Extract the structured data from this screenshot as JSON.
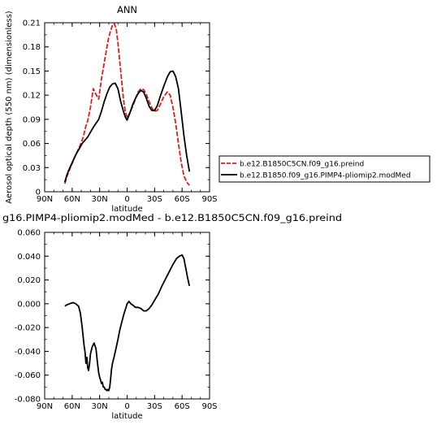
{
  "chart_data": [
    {
      "type": "line",
      "title": "ANN",
      "xlabel": "latitude",
      "ylabel": "Aerosol optical depth (550 nm) (dimensionless)",
      "xlim": [
        -90,
        90
      ],
      "ylim": [
        0,
        0.21
      ],
      "x_ticks": [
        -90,
        -60,
        -30,
        0,
        30,
        60,
        90
      ],
      "x_tick_labels": [
        "90N",
        "60N",
        "30N",
        "0",
        "30S",
        "60S",
        "90S"
      ],
      "y_ticks": [
        0,
        0.03,
        0.06,
        0.09,
        0.12,
        0.15,
        0.18,
        0.21
      ],
      "y_tick_labels": [
        "0",
        "0.03",
        "0.06",
        "0.09",
        "0.12",
        "0.15",
        "0.18",
        "0.21"
      ],
      "legend_position": "right",
      "series": [
        {
          "name": "b.e12.B1850C5CN.f09_g16.preind",
          "color": "#e8191a",
          "dash": "dashed",
          "x": [
            -68,
            -66,
            -64,
            -60,
            -56,
            -52,
            -49,
            -47,
            -45,
            -43,
            -40,
            -37,
            -34,
            -31,
            -28,
            -25,
            -22,
            -20,
            -18,
            -16,
            -14,
            -12,
            -10,
            -7,
            -4,
            -2,
            0,
            3,
            6,
            9,
            12,
            15,
            18,
            21,
            24,
            27,
            30,
            33,
            36,
            40,
            44,
            47,
            50,
            53,
            56,
            59,
            62,
            65,
            68
          ],
          "y": [
            0.01,
            0.018,
            0.024,
            0.035,
            0.046,
            0.056,
            0.064,
            0.072,
            0.082,
            0.088,
            0.105,
            0.128,
            0.121,
            0.115,
            0.14,
            0.16,
            0.18,
            0.192,
            0.2,
            0.207,
            0.209,
            0.203,
            0.185,
            0.15,
            0.115,
            0.1,
            0.092,
            0.098,
            0.106,
            0.115,
            0.124,
            0.128,
            0.127,
            0.121,
            0.112,
            0.104,
            0.1,
            0.101,
            0.108,
            0.118,
            0.124,
            0.12,
            0.105,
            0.085,
            0.06,
            0.037,
            0.02,
            0.012,
            0.008
          ]
        },
        {
          "name": "b.e12.B1850.f09_g16.PIMP4-pliomip2.modMed",
          "color": "#000000",
          "dash": "solid",
          "x": [
            -68,
            -66,
            -64,
            -60,
            -56,
            -52,
            -49,
            -46,
            -43,
            -40,
            -37,
            -34,
            -31,
            -28,
            -25,
            -22,
            -19,
            -16,
            -13,
            -10,
            -7,
            -4,
            -2,
            0,
            3,
            6,
            9,
            12,
            15,
            18,
            21,
            24,
            27,
            30,
            33,
            36,
            40,
            44,
            47,
            50,
            53,
            56,
            59,
            62,
            65,
            68
          ],
          "y": [
            0.012,
            0.02,
            0.026,
            0.036,
            0.046,
            0.054,
            0.06,
            0.064,
            0.068,
            0.074,
            0.08,
            0.085,
            0.09,
            0.1,
            0.112,
            0.122,
            0.13,
            0.134,
            0.135,
            0.128,
            0.112,
            0.1,
            0.093,
            0.089,
            0.098,
            0.108,
            0.116,
            0.122,
            0.126,
            0.124,
            0.116,
            0.106,
            0.101,
            0.101,
            0.107,
            0.118,
            0.131,
            0.143,
            0.149,
            0.15,
            0.143,
            0.128,
            0.1,
            0.07,
            0.045,
            0.025
          ]
        }
      ]
    },
    {
      "type": "line",
      "title": "g16.PIMP4-pliomip2.modMed - b.e12.B1850C5CN.f09_g16.preind",
      "xlabel": "latitude",
      "ylabel": "",
      "xlim": [
        -90,
        90
      ],
      "ylim": [
        -0.08,
        0.06
      ],
      "x_ticks": [
        -90,
        -60,
        -30,
        0,
        30,
        60,
        90
      ],
      "x_tick_labels": [
        "90N",
        "60N",
        "30N",
        "0",
        "30S",
        "60S",
        "90S"
      ],
      "y_ticks": [
        -0.08,
        -0.06,
        -0.04,
        -0.02,
        0,
        0.02,
        0.04,
        0.06
      ],
      "y_tick_labels": [
        "-0.080",
        "-0.060",
        "-0.040",
        "-0.020",
        "0.000",
        "0.020",
        "0.040",
        "0.060"
      ],
      "series": [
        {
          "color": "#000000",
          "dash": "solid",
          "x": [
            -68,
            -66,
            -63,
            -59,
            -56,
            -53,
            -51,
            -49,
            -47,
            -46,
            -45,
            -44,
            -43,
            -42,
            -41,
            -40,
            -38,
            -36,
            -34,
            -33,
            -32,
            -31,
            -30,
            -29,
            -28,
            -27,
            -26,
            -25,
            -24,
            -23,
            -22,
            -21,
            -20,
            -19,
            -18,
            -17,
            -16,
            -14,
            -12,
            -10,
            -8,
            -6,
            -4,
            -2,
            0,
            2,
            4,
            6,
            9,
            12,
            15,
            18,
            21,
            24,
            27,
            30,
            34,
            38,
            42,
            46,
            50,
            54,
            57,
            60,
            62,
            64,
            66,
            68
          ],
          "y": [
            -0.002,
            -0.001,
            0,
            0.001,
            0.0,
            -0.002,
            -0.008,
            -0.02,
            -0.035,
            -0.04,
            -0.05,
            -0.045,
            -0.054,
            -0.056,
            -0.05,
            -0.042,
            -0.036,
            -0.033,
            -0.038,
            -0.045,
            -0.052,
            -0.058,
            -0.062,
            -0.064,
            -0.067,
            -0.066,
            -0.07,
            -0.07,
            -0.072,
            -0.072,
            -0.073,
            -0.072,
            -0.073,
            -0.07,
            -0.063,
            -0.055,
            -0.05,
            -0.044,
            -0.037,
            -0.03,
            -0.022,
            -0.016,
            -0.01,
            -0.005,
            0.0,
            0.002,
            0.0,
            -0.001,
            -0.003,
            -0.003,
            -0.004,
            -0.006,
            -0.006,
            -0.004,
            -0.001,
            0.003,
            0.008,
            0.015,
            0.021,
            0.027,
            0.033,
            0.038,
            0.04,
            0.041,
            0.038,
            0.03,
            0.022,
            0.015
          ]
        }
      ]
    }
  ]
}
